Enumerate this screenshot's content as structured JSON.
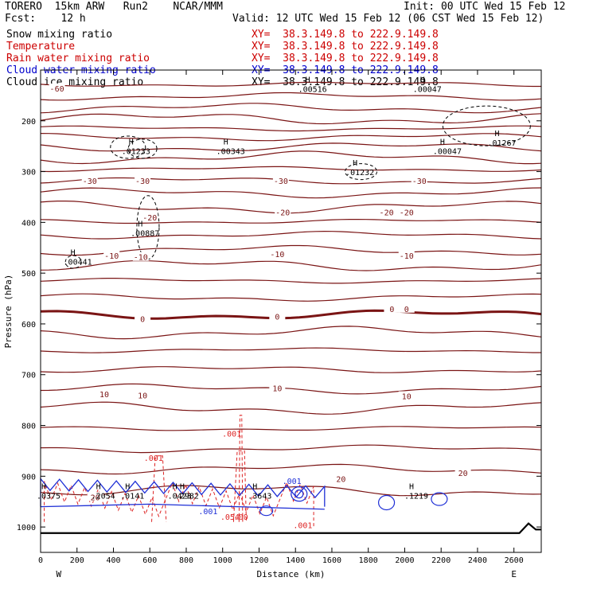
{
  "header": {
    "model": "TORERO  15km ARW   Run2    NCAR/MMM",
    "init": "Init: 00 UTC Wed 15 Feb 12",
    "fcst": "Fcst:    12 h",
    "valid": "Valid: 12 UTC Wed 15 Feb 12 (06 CST Wed 15 Feb 12)"
  },
  "fields": [
    {
      "name": "Snow mixing ratio",
      "xy": "XY=  38.3.149.8 to 222.9.149.8",
      "color": "#000000"
    },
    {
      "name": "Temperature",
      "xy": "XY=  38.3.149.8 to 222.9.149.8",
      "color": "#cc0000"
    },
    {
      "name": "Rain water mixing ratio",
      "xy": "XY=  38.3.149.8 to 222.9.149.8",
      "color": "#cc0000"
    },
    {
      "name": "Cloud water mixing ratio",
      "xy": "XY=  38.3.149.8 to 222.9.149.8",
      "color": "#0000cc"
    },
    {
      "name": "Cloud ice mixing ratio",
      "xy": "XY=  38.3.149.8 to 222.9.149.8",
      "color": "#000000"
    }
  ],
  "chart_data": {
    "type": "line",
    "xlabel": "Distance (km)",
    "ylabel": "Pressure (hPa)",
    "xlim": [
      0,
      2750
    ],
    "ylim": [
      1050,
      100
    ],
    "xticks": [
      0,
      200,
      400,
      600,
      800,
      1000,
      1200,
      1400,
      1600,
      1800,
      2000,
      2200,
      2400,
      2600
    ],
    "yticks": [
      200,
      300,
      400,
      500,
      600,
      700,
      800,
      900,
      1000
    ],
    "x_end_labels": {
      "left": "W",
      "right": "E"
    },
    "temperature_levels_hpa": [
      128,
      152,
      175,
      196,
      215,
      232,
      252,
      272,
      295,
      318,
      342,
      370,
      398,
      425,
      455,
      485,
      515,
      548,
      582,
      617,
      652,
      690,
      728,
      766,
      806,
      846,
      886,
      928
    ],
    "temperature_labels": [
      {
        "text": "-60",
        "x": 90,
        "p": 136
      },
      {
        "text": "-30",
        "x": 270,
        "p": 318
      },
      {
        "text": "-30",
        "x": 560,
        "p": 318
      },
      {
        "text": "-30",
        "x": 1320,
        "p": 318
      },
      {
        "text": "-30",
        "x": 2080,
        "p": 318
      },
      {
        "text": "-20",
        "x": 600,
        "p": 390
      },
      {
        "text": "-20",
        "x": 1330,
        "p": 380
      },
      {
        "text": "-20",
        "x": 1900,
        "p": 380
      },
      {
        "text": "-20",
        "x": 2010,
        "p": 380
      },
      {
        "text": "-10",
        "x": 390,
        "p": 465
      },
      {
        "text": "-10",
        "x": 550,
        "p": 468
      },
      {
        "text": "-10",
        "x": 1300,
        "p": 462
      },
      {
        "text": "-10",
        "x": 2010,
        "p": 465
      },
      {
        "text": "0",
        "x": 560,
        "p": 590
      },
      {
        "text": "0",
        "x": 1300,
        "p": 585
      },
      {
        "text": "0",
        "x": 1930,
        "p": 570
      },
      {
        "text": "0",
        "x": 2010,
        "p": 570
      },
      {
        "text": "10",
        "x": 350,
        "p": 738
      },
      {
        "text": "10",
        "x": 560,
        "p": 740
      },
      {
        "text": "10",
        "x": 1300,
        "p": 726
      },
      {
        "text": "10",
        "x": 2010,
        "p": 742
      },
      {
        "text": "20",
        "x": 1650,
        "p": 905
      },
      {
        "text": "20",
        "x": 2320,
        "p": 893
      },
      {
        "text": "20",
        "x": 300,
        "p": 941
      }
    ],
    "max_labels": [
      {
        "text": ".00516",
        "x": 1450,
        "p": 140
      },
      {
        "text": ".00047",
        "x": 2080,
        "p": 140
      },
      {
        "text": ".01233",
        "x": 480,
        "p": 262
      },
      {
        "text": ".00343",
        "x": 1000,
        "p": 262
      },
      {
        "text": ".01232",
        "x": 1710,
        "p": 304
      },
      {
        "text": ".00047",
        "x": 2190,
        "p": 262
      },
      {
        "text": ".01267",
        "x": 2490,
        "p": 246
      },
      {
        "text": ".00887",
        "x": 530,
        "p": 424
      },
      {
        "text": ".00441",
        "x": 160,
        "p": 480
      },
      {
        "text": ".0375",
        "x": 0,
        "p": 941
      },
      {
        "text": ".2054",
        "x": 300,
        "p": 941
      },
      {
        "text": ".0141",
        "x": 460,
        "p": 941
      },
      {
        "text": ".0423",
        "x": 720,
        "p": 941
      },
      {
        "text": ".2982",
        "x": 760,
        "p": 941
      },
      {
        "text": ".3643",
        "x": 1160,
        "p": 941
      },
      {
        "text": ".1219",
        "x": 2020,
        "p": 941
      }
    ],
    "rain_labels": [
      {
        "text": ".001",
        "x": 1050,
        "p": 822
      },
      {
        "text": ".001",
        "x": 620,
        "p": 870
      },
      {
        "text": ".054",
        "x": 1040,
        "p": 986
      },
      {
        "text": ".00",
        "x": 1100,
        "p": 986
      },
      {
        "text": ".001",
        "x": 1440,
        "p": 1002
      }
    ],
    "cloud_labels": [
      {
        "text": ".001",
        "x": 1380,
        "p": 915
      },
      {
        "text": ".001",
        "x": 920,
        "p": 975
      }
    ],
    "surface_label": "terrain",
    "colors": {
      "temp": "#7a1414",
      "rain": "#dd2222",
      "cloudwater": "#1e2fd6",
      "ice": "#000000",
      "axis": "#000000"
    }
  }
}
